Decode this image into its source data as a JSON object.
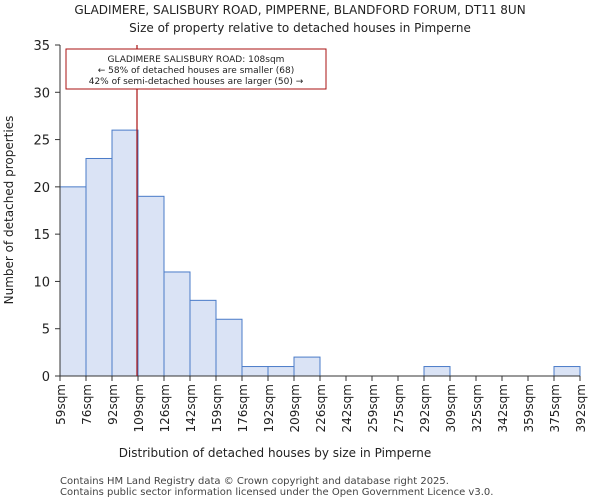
{
  "chart_data": {
    "type": "bar",
    "title_line1": "GLADIMERE, SALISBURY ROAD, PIMPERNE, BLANDFORD FORUM, DT11 8UN",
    "title_line2": "Size of property relative to detached houses in Pimperne",
    "xlabel": "Distribution of detached houses by size in Pimperne",
    "ylabel": "Number of detached properties",
    "bin_edges": [
      "59sqm",
      "76sqm",
      "92sqm",
      "109sqm",
      "126sqm",
      "142sqm",
      "159sqm",
      "176sqm",
      "192sqm",
      "209sqm",
      "226sqm",
      "242sqm",
      "259sqm",
      "275sqm",
      "292sqm",
      "309sqm",
      "325sqm",
      "342sqm",
      "359sqm",
      "375sqm",
      "392sqm"
    ],
    "values": [
      20,
      23,
      26,
      19,
      11,
      8,
      6,
      1,
      1,
      2,
      0,
      0,
      0,
      0,
      1,
      0,
      0,
      0,
      0,
      1
    ],
    "ylim": [
      0,
      35
    ],
    "yticks": [
      0,
      5,
      10,
      15,
      20,
      25,
      30,
      35
    ],
    "property_marker_bin_position": 3,
    "annotation": {
      "line1": "GLADIMERE SALISBURY ROAD: 108sqm",
      "line2": "← 58% of detached houses are smaller (68)",
      "line3": "42% of semi-detached houses are larger (50) →"
    },
    "colors": {
      "bar_fill": "#dae3f5",
      "bar_stroke": "#4a7bc8",
      "marker": "#aa1111",
      "axis": "#333333"
    }
  },
  "footer": {
    "line1": "Contains HM Land Registry data © Crown copyright and database right 2025.",
    "line2": "Contains public sector information licensed under the Open Government Licence v3.0."
  }
}
